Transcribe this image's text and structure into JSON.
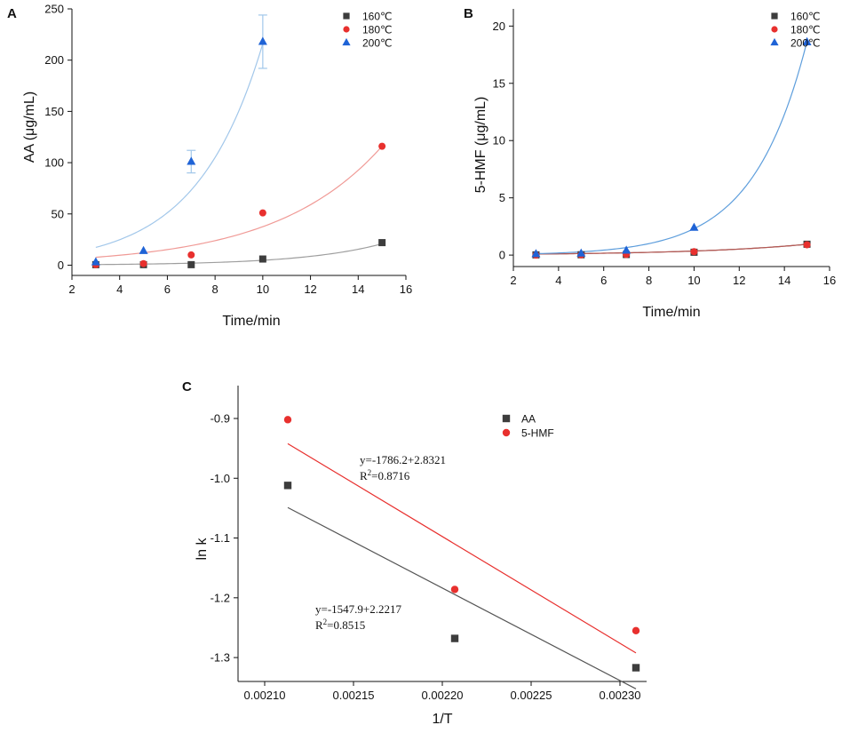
{
  "figure": {
    "panels": [
      {
        "letter": "A",
        "xlabel": "Time/min",
        "ylabel": "AA (μg/mL)"
      },
      {
        "letter": "B",
        "xlabel": "Time/min",
        "ylabel": "5-HMF (μg/mL)"
      },
      {
        "letter": "C",
        "xlabel": "1/T",
        "ylabel": "ln k"
      }
    ]
  },
  "chart_data": [
    {
      "id": "A",
      "type": "scatter",
      "title": "A",
      "xlabel": "Time/min",
      "ylabel": "AA (μg/mL)",
      "xlim": [
        2,
        16
      ],
      "ylim": [
        -10,
        250
      ],
      "xticks": [
        2,
        4,
        6,
        8,
        10,
        12,
        14,
        16
      ],
      "yticks": [
        0,
        50,
        100,
        150,
        200,
        250
      ],
      "legend_position": "top-right",
      "x": [
        3,
        5,
        7,
        10,
        15
      ],
      "series": [
        {
          "name": "160℃",
          "marker": "square",
          "color": "#3d3d3d",
          "fit_color": "#9e9e9e",
          "values": [
            0.5,
            0.5,
            0.5,
            6,
            22
          ],
          "fit": {
            "a": 0.25,
            "b": 0.295
          }
        },
        {
          "name": "180℃",
          "marker": "circle",
          "color": "#e8302e",
          "fit_color": "#f09a96",
          "values": [
            0.5,
            1.5,
            10,
            51,
            116
          ],
          "fit": {
            "a": 3.93,
            "b": 0.2257
          }
        },
        {
          "name": "200℃",
          "marker": "triangle",
          "color": "#1f63d6",
          "fit_color": "#a2c7ea",
          "values": [
            3,
            14,
            101,
            218,
            null
          ],
          "errors": [
            0,
            0,
            11,
            26,
            null
          ],
          "fit": {
            "a": 5.88,
            "b": 0.3604,
            "xmax": 10
          }
        }
      ]
    },
    {
      "id": "B",
      "type": "scatter",
      "title": "B",
      "xlabel": "Time/min",
      "ylabel": "5-HMF (μg/mL)",
      "xlim": [
        2,
        16
      ],
      "ylim": [
        -1,
        21.5
      ],
      "xticks": [
        2,
        4,
        6,
        8,
        10,
        12,
        14,
        16
      ],
      "yticks": [
        0,
        5,
        10,
        15,
        20
      ],
      "legend_position": "top-right",
      "x": [
        3,
        5,
        7,
        10,
        15
      ],
      "series": [
        {
          "name": "160℃",
          "marker": "square",
          "color": "#3d3d3d",
          "fit_color": "#8a5a5a",
          "values": [
            0.02,
            0.03,
            0.05,
            0.25,
            0.95
          ],
          "fit": {
            "a": 0.05,
            "b": 0.196
          }
        },
        {
          "name": "180℃",
          "marker": "circle",
          "color": "#e8302e",
          "fit_color": "#b55a55",
          "values": [
            0.0,
            0.02,
            0.05,
            0.3,
            0.9
          ],
          "fit": {
            "a": 0.05,
            "b": 0.196
          }
        },
        {
          "name": "200℃",
          "marker": "triangle",
          "color": "#1f63d6",
          "fit_color": "#5e9edc",
          "values": [
            0.1,
            0.15,
            0.4,
            2.4,
            18.6
          ],
          "fit": {
            "a": 0.0353,
            "b": 0.418
          }
        }
      ]
    },
    {
      "id": "C",
      "type": "scatter",
      "title": "C",
      "xlabel": "1/T",
      "ylabel": "ln k",
      "xlim": [
        0.002085,
        0.002315
      ],
      "ylim": [
        -1.34,
        -0.845
      ],
      "xticks": [
        0.0021,
        0.00215,
        0.0022,
        0.00225,
        0.0023
      ],
      "xticklabels": [
        "0.00210",
        "0.00215",
        "0.00220",
        "0.00225",
        "0.00230"
      ],
      "yticks": [
        -0.9,
        -1.0,
        -1.1,
        -1.2,
        -1.3
      ],
      "yticklabels": [
        "-0.9",
        "-1.0",
        "-1.1",
        "-1.2",
        "-1.3"
      ],
      "legend_position": "top-right",
      "x": [
        0.002113,
        0.002207,
        0.002309
      ],
      "series": [
        {
          "name": "AA",
          "marker": "square",
          "color": "#3d3d3d",
          "fit_color": "#555555",
          "values": [
            -1.012,
            -1.268,
            -1.317
          ],
          "fit_line": {
            "slope": -1547.9,
            "intercept": 2.2217
          },
          "equation": "y=-1547.9+2.2217",
          "r2_label": "R",
          "r2_sup": "2",
          "r2_value": "=0.8515"
        },
        {
          "name": "5-HMF",
          "marker": "circle",
          "color": "#e8302e",
          "fit_color": "#e8302e",
          "values": [
            -0.902,
            -1.186,
            -1.255
          ],
          "fit_line": {
            "slope": -1786.2,
            "intercept": 2.8321
          },
          "equation": "y=-1786.2+2.8321",
          "r2_label": "R",
          "r2_sup": "2",
          "r2_value": "=0.8716"
        }
      ]
    }
  ]
}
